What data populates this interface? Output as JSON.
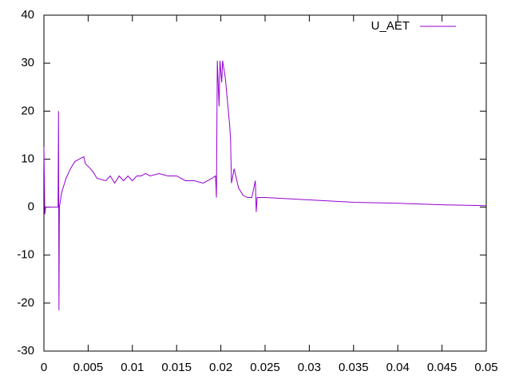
{
  "chart_data": {
    "type": "line",
    "x": [
      0,
      0.0001,
      0.0002,
      0.001,
      0.0016,
      0.00165,
      0.0017,
      0.00175,
      0.002,
      0.0025,
      0.003,
      0.0035,
      0.004,
      0.0045,
      0.0047,
      0.005,
      0.0055,
      0.006,
      0.007,
      0.0075,
      0.008,
      0.0085,
      0.009,
      0.0095,
      0.01,
      0.0105,
      0.011,
      0.0115,
      0.012,
      0.013,
      0.014,
      0.015,
      0.016,
      0.017,
      0.018,
      0.019,
      0.0194,
      0.0195,
      0.0196,
      0.0198,
      0.0199,
      0.0201,
      0.0202,
      0.0205,
      0.021,
      0.0211,
      0.0212,
      0.0215,
      0.022,
      0.0225,
      0.023,
      0.0235,
      0.0239,
      0.024,
      0.0241,
      0.025,
      0.03,
      0.035,
      0.04,
      0.045,
      0.05
    ],
    "series": [
      {
        "name": "U_AET",
        "color": "#9400d3",
        "values": [
          12.5,
          -1.5,
          0,
          0,
          0,
          20,
          -21.5,
          0,
          3,
          6,
          8,
          9.5,
          10,
          10.5,
          9,
          8.5,
          7.5,
          6,
          5.5,
          6.5,
          5,
          6.5,
          5.5,
          6.5,
          5.5,
          6.5,
          6.5,
          7,
          6.5,
          7,
          6.5,
          6.5,
          5.5,
          5.5,
          5,
          6,
          6.5,
          2,
          30.5,
          21,
          30.5,
          26,
          30.5,
          27,
          17,
          14,
          5,
          8,
          4,
          2.5,
          2,
          2,
          5.5,
          -1,
          2,
          2,
          1.5,
          1,
          0.8,
          0.5,
          0.3
        ]
      }
    ],
    "xlim": [
      0,
      0.05
    ],
    "xticks": [
      0,
      0.005,
      0.01,
      0.015,
      0.02,
      0.025,
      0.03,
      0.035,
      0.04,
      0.045,
      0.05
    ],
    "ylim": [
      -30,
      40
    ],
    "yticks": [
      -30,
      -20,
      -10,
      0,
      10,
      20,
      30,
      40
    ],
    "legend": "top-right"
  }
}
